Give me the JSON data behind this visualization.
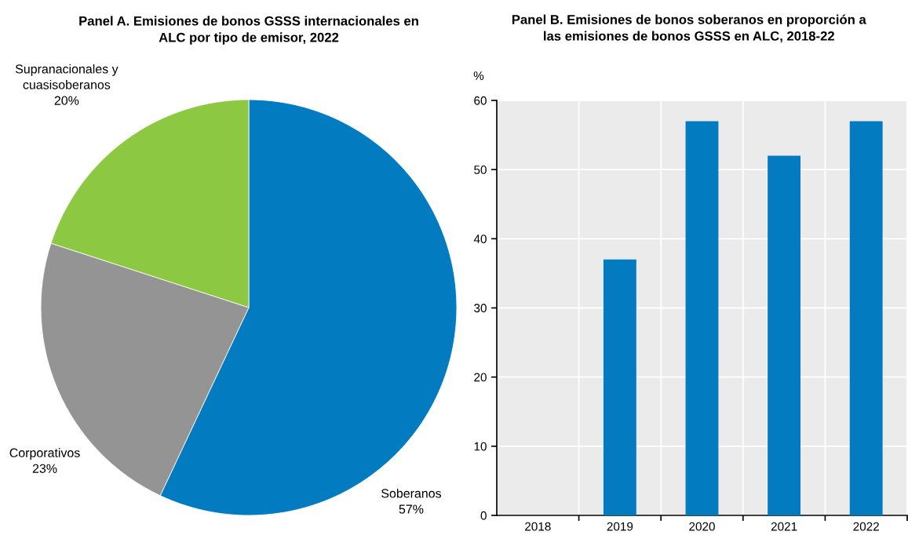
{
  "chart_data": [
    {
      "type": "pie",
      "title": "Panel A. Emisiones de bonos GSSS internacionales en ALC por tipo de emisor, 2022",
      "categories": [
        "Soberanos",
        "Corporativos",
        "Supranacionales y cuasisoberanos"
      ],
      "values": [
        57,
        23,
        20
      ],
      "colors": [
        "#037bc1",
        "#949494",
        "#8cc841"
      ],
      "value_labels": [
        "57%",
        "23%",
        "20%"
      ]
    },
    {
      "type": "bar",
      "title": "Panel B. Emisiones de bonos soberanos en proporción a las emisiones de bonos GSSS en ALC, 2018-22",
      "ylabel": "%",
      "categories": [
        "2018",
        "2019",
        "2020",
        "2021",
        "2022"
      ],
      "values": [
        null,
        37,
        57,
        52,
        57
      ],
      "color": "#037bc1",
      "ylim": [
        0,
        60
      ],
      "yticks": [
        0,
        10,
        20,
        30,
        40,
        50,
        60
      ],
      "grid": true
    }
  ]
}
